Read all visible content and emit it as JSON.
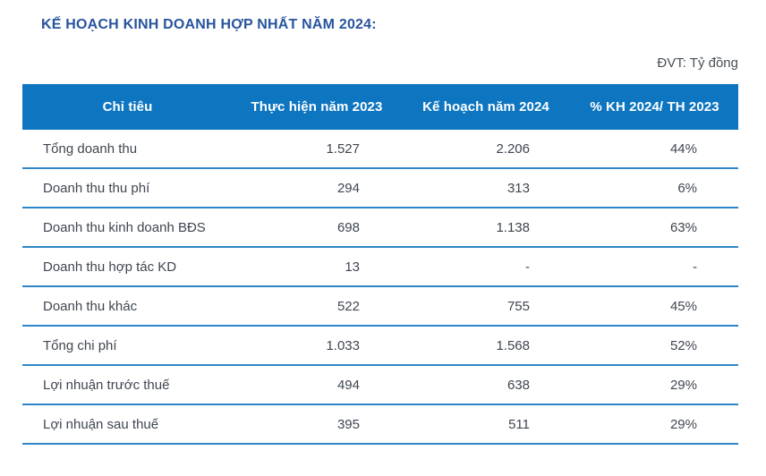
{
  "header": {
    "title": "KẾ HOẠCH KINH DOANH HỢP NHẤT NĂM 2024:",
    "unit_label": "ĐVT: Tỷ đồng"
  },
  "table": {
    "columns": [
      "Chỉ tiêu",
      "Thực hiện năm 2023",
      "Kế hoạch năm 2024",
      "% KH 2024/ TH 2023"
    ],
    "rows": [
      [
        "Tổng doanh thu",
        "1.527",
        "2.206",
        "44%"
      ],
      [
        "Doanh thu thu phí",
        "294",
        "313",
        "6%"
      ],
      [
        "Doanh thu kinh doanh BĐS",
        "698",
        "1.138",
        "63%"
      ],
      [
        "Doanh thu hợp tác KD",
        "13",
        "-",
        "-"
      ],
      [
        "Doanh thu khác",
        "522",
        "755",
        "45%"
      ],
      [
        "Tổng chi phí",
        "1.033",
        "1.568",
        "52%"
      ],
      [
        "Lợi nhuận trước thuế",
        "494",
        "638",
        "29%"
      ],
      [
        "Lợi nhuận sau thuế",
        "395",
        "511",
        "29%"
      ]
    ]
  },
  "colors": {
    "header_bg": "#0e76c1",
    "row_divider": "#2f86c7",
    "title_text": "#27549e",
    "body_text": "#3f4651",
    "unit_text": "#4a5056"
  }
}
